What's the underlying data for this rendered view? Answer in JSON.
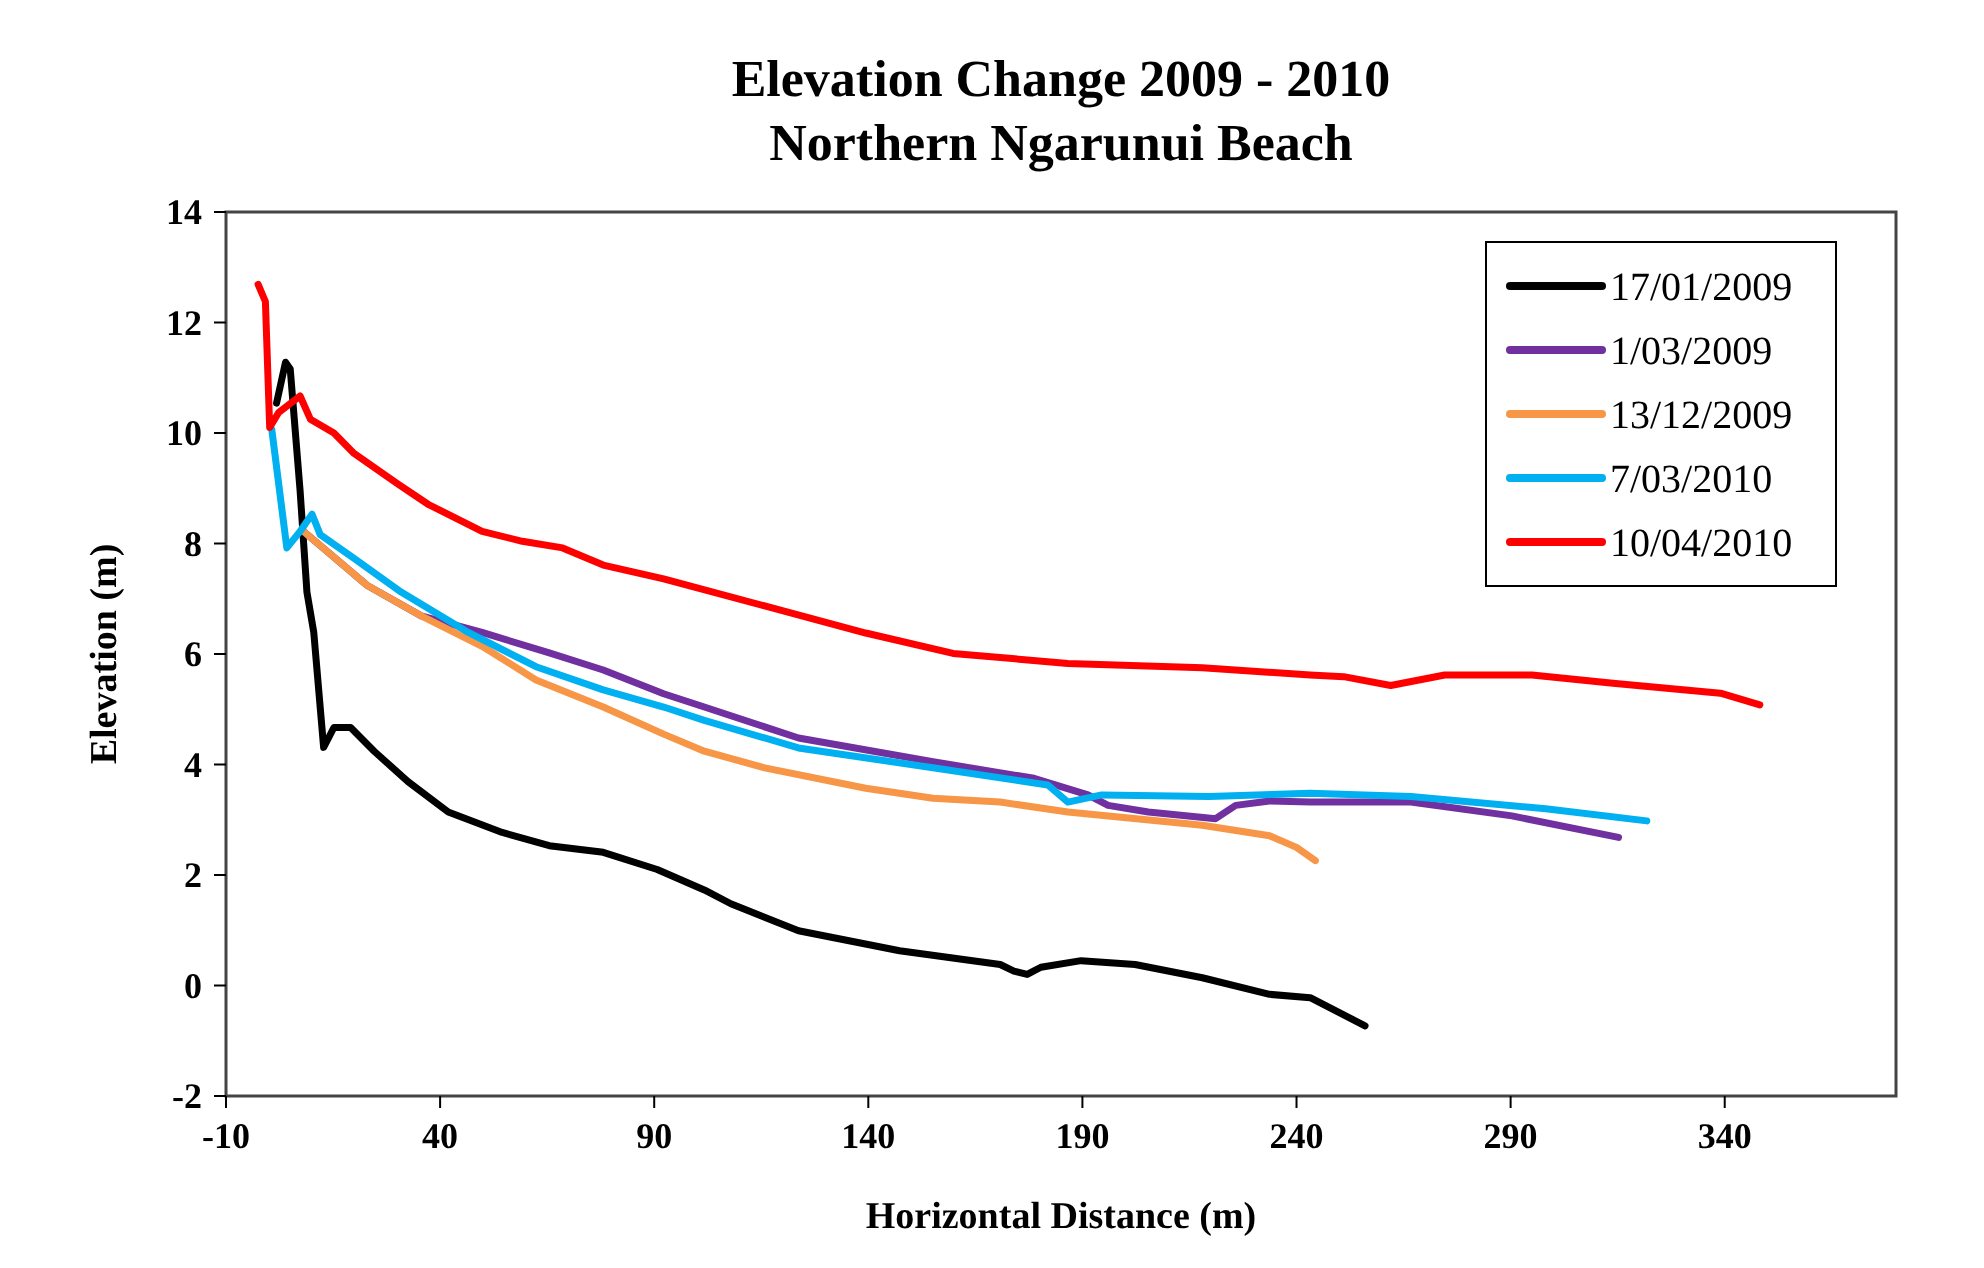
{
  "chart_data": {
    "type": "line",
    "title": "Elevation Change 2009 - 2010\nNorthern Ngarunui Beach",
    "xlabel": "Horizontal Distance (m)",
    "ylabel": "Elevation (m)",
    "xlim": [
      -10,
      380
    ],
    "xticks": [
      -10,
      40,
      90,
      140,
      190,
      240,
      290,
      340
    ],
    "ylim": [
      -2,
      14
    ],
    "yticks": [
      -2,
      0,
      2,
      4,
      6,
      8,
      10,
      12,
      14
    ],
    "grid": false,
    "legend": "top right",
    "marker": "none",
    "line_style": "solid",
    "series": [
      {
        "name": "17/01/2009",
        "color": "#000000",
        "x": [
          1.8,
          3.9,
          5,
          7.3,
          8.9,
          10.5,
          12.8,
          15.2,
          19.1,
          24.6,
          32.5,
          41.9,
          54.5,
          65.5,
          78.1,
          90.7,
          101.7,
          107.9,
          123.7,
          147.3,
          170.8,
          174,
          177.1,
          180.3,
          189.7,
          202.3,
          218,
          233.7,
          243.2,
          256
        ],
        "values": [
          10.54,
          11.28,
          11.16,
          8.96,
          7.12,
          6.39,
          4.31,
          4.67,
          4.67,
          4.24,
          3.69,
          3.14,
          2.77,
          2.53,
          2.41,
          2.1,
          1.73,
          1.48,
          0.99,
          0.63,
          0.38,
          0.26,
          0.2,
          0.33,
          0.45,
          0.38,
          0.14,
          -0.16,
          -0.22,
          -0.73
        ]
      },
      {
        "name": "1/03/2009",
        "color": "#7030a0",
        "x": [
          8.1,
          23,
          35.6,
          49.8,
          65.5,
          78.1,
          92.2,
          101.7,
          123.7,
          155.1,
          178.7,
          191.3,
          196,
          205.4,
          221.1,
          225.8,
          233.7,
          243.2,
          266.7,
          290.3,
          315.2
        ],
        "values": [
          8.22,
          7.24,
          6.69,
          6.39,
          6.02,
          5.71,
          5.28,
          5.04,
          4.48,
          4.05,
          3.75,
          3.45,
          3.26,
          3.14,
          3.02,
          3.26,
          3.34,
          3.32,
          3.32,
          3.07,
          2.68
        ]
      },
      {
        "name": "13/12/2009",
        "color": "#f79646",
        "x": [
          8.1,
          23,
          35.6,
          49.8,
          62.4,
          78.1,
          92.2,
          101.7,
          115.8,
          139.4,
          155.1,
          170.8,
          186.6,
          218,
          233.7,
          240,
          244.4
        ],
        "values": [
          8.22,
          7.24,
          6.69,
          6.14,
          5.53,
          5.04,
          4.55,
          4.24,
          3.94,
          3.57,
          3.39,
          3.32,
          3.14,
          2.9,
          2.71,
          2.5,
          2.26
        ]
      },
      {
        "name": "7/03/2010",
        "color": "#00b0f0",
        "x": [
          0.7,
          4.2,
          7.3,
          10.1,
          12,
          19.9,
          30.9,
          46.6,
          62.4,
          78.1,
          92.2,
          101.7,
          123.7,
          155.1,
          181.9,
          186.6,
          194.5,
          219.6,
          243.2,
          266.7,
          298.2,
          321.8
        ],
        "values": [
          10.06,
          7.92,
          8.22,
          8.53,
          8.16,
          7.73,
          7.12,
          6.39,
          5.77,
          5.35,
          5.04,
          4.8,
          4.3,
          3.94,
          3.63,
          3.32,
          3.45,
          3.42,
          3.48,
          3.42,
          3.2,
          2.98
        ]
      },
      {
        "name": "10/04/2010",
        "color": "#ff0000",
        "x": [
          -2.5,
          -0.8,
          0.2,
          2.3,
          7.3,
          9.7,
          15.2,
          19.9,
          30.1,
          37.2,
          49.8,
          59.2,
          68.6,
          78.1,
          92.2,
          115.8,
          139.4,
          159.8,
          186.6,
          218,
          243.2,
          251,
          262,
          274.6,
          295,
          313.9,
          339,
          348.2
        ],
        "values": [
          12.69,
          12.38,
          10.1,
          10.37,
          10.67,
          10.25,
          10,
          9.63,
          9.08,
          8.71,
          8.22,
          8.04,
          7.92,
          7.61,
          7.36,
          6.87,
          6.38,
          6.01,
          5.83,
          5.75,
          5.62,
          5.59,
          5.43,
          5.62,
          5.62,
          5.47,
          5.29,
          5.08
        ]
      }
    ]
  }
}
